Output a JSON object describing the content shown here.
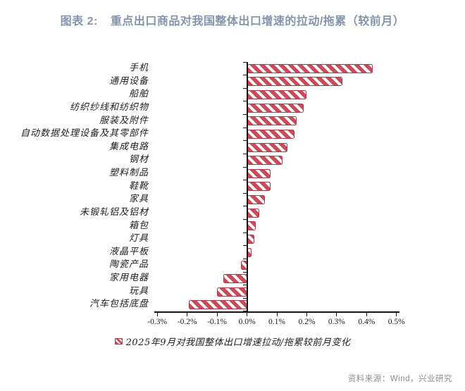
{
  "title": {
    "label": "图表 2:",
    "text": "重点出口商品对我国整体出口增速的拉动/拖累（较前月）"
  },
  "legend": {
    "label": "2025年9月对我国整体出口增速拉动/拖累较前月变化"
  },
  "source": "资料来源：Wind，兴业研究",
  "colors": {
    "title": "#8494ab",
    "bar_fill": "#c84b59",
    "bar_border": "#a93a4c",
    "hatch": "#ffffff",
    "axis": "#141414",
    "source_text": "#8c8c8c",
    "background": "#ffffff"
  },
  "chart_data": {
    "type": "bar",
    "orientation": "horizontal",
    "title": "重点出口商品对我国整体出口增速的拉动/拖累（较前月）",
    "series_name": "2025年9月对我国整体出口增速拉动/拖累较前月变化",
    "unit": "%",
    "categories": [
      "手机",
      "通用设备",
      "船舶",
      "纺织纱线和纺织物",
      "服装及附件",
      "自动数据处理设备及其零部件",
      "集成电路",
      "钢材",
      "塑料制品",
      "鞋靴",
      "家具",
      "未锻轧铝及铝材",
      "箱包",
      "灯具",
      "液晶平板",
      "陶瓷产品",
      "家用电器",
      "玩具",
      "汽车包括底盘"
    ],
    "values": [
      0.42,
      0.32,
      0.2,
      0.19,
      0.165,
      0.16,
      0.135,
      0.12,
      0.08,
      0.08,
      0.06,
      0.04,
      0.03,
      0.025,
      0.015,
      -0.02,
      -0.08,
      -0.1,
      -0.195
    ],
    "xlim": [
      -0.31,
      0.51
    ],
    "x_ticks": [
      "-0.3%",
      "-0.2%",
      "-0.1%",
      "0.0%",
      "0.1%",
      "0.2%",
      "0.3%",
      "0.4%",
      "0.5%"
    ],
    "x_tick_values": [
      -0.3,
      -0.2,
      -0.1,
      0.0,
      0.1,
      0.2,
      0.3,
      0.4,
      0.5
    ],
    "hatch_direction": "backslash",
    "grid": false,
    "legend_position": "bottom"
  }
}
